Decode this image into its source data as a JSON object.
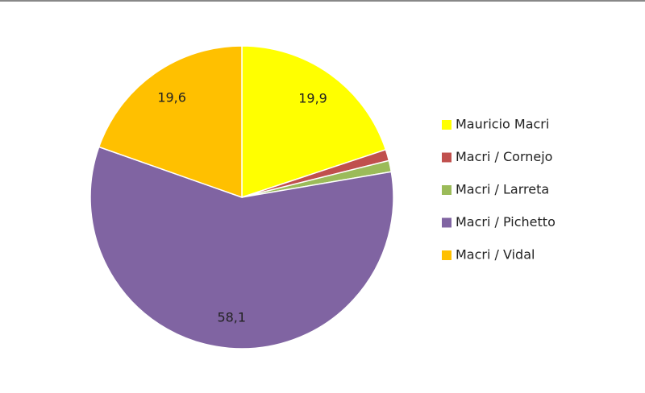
{
  "chart_data": {
    "type": "pie",
    "categories": [
      "Mauricio Macri",
      "Macri / Cornejo",
      "Macri / Larreta",
      "Macri / Pichetto",
      "Macri / Vidal"
    ],
    "values": [
      19.9,
      1.2,
      1.2,
      58.1,
      19.6
    ],
    "value_labels": [
      "19,9",
      null,
      null,
      "58,1",
      "19,6"
    ],
    "colors": [
      "#ffff00",
      "#c0504d",
      "#9bbb59",
      "#8064a2",
      "#ffc000"
    ],
    "legend": "right"
  }
}
